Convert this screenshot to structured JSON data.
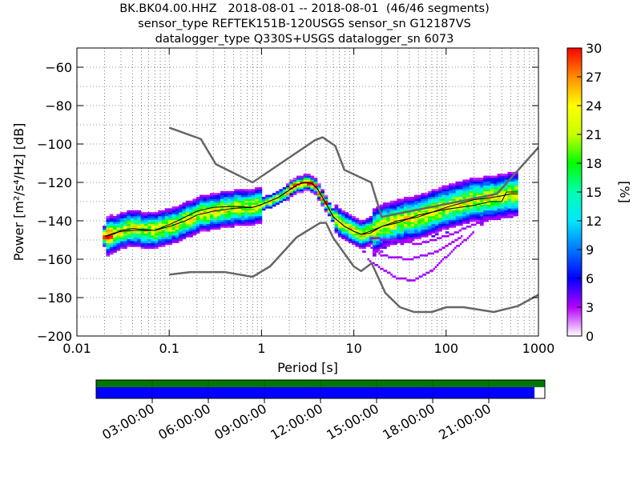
{
  "title": {
    "line1": "BK.BK04.00.HHZ   2018-08-01 -- 2018-08-01  (46/46 segments)",
    "line2": "sensor_type REFTEK151B-120USGS sensor_sn G12187VS",
    "line3": "datalogger_type Q330S+USGS datalogger_sn 6073"
  },
  "chart_data": {
    "type": "heatmap",
    "xlabel": "Period [s]",
    "ylabel": "Power [m²/s⁴/Hz] [dB]",
    "xscale": "log",
    "xlim": [
      0.01,
      1000
    ],
    "ylim": [
      -200,
      -50
    ],
    "x_ticks": [
      "0.01",
      "0.1",
      "1",
      "10",
      "100",
      "1000"
    ],
    "y_ticks": [
      "−200",
      "−180",
      "−160",
      "−140",
      "−120",
      "−100",
      "−80",
      "−60"
    ],
    "colorbar": {
      "label": "[%]",
      "range": [
        0,
        30
      ],
      "ticks": [
        "0",
        "3",
        "6",
        "9",
        "12",
        "15",
        "18",
        "21",
        "24",
        "27",
        "30"
      ]
    },
    "series": [
      {
        "role": "high_noise_model",
        "x": [
          0.1,
          0.22,
          0.32,
          0.8,
          3.8,
          4.6,
          6.3,
          7.9,
          15.4,
          20,
          354.8,
          10000
        ],
        "y": [
          -91.5,
          -97.4,
          -110.5,
          -120,
          -98,
          -96.5,
          -101,
          -113.5,
          -120,
          -138,
          -126,
          -48
        ]
      },
      {
        "role": "low_noise_model",
        "x": [
          0.1,
          0.17,
          0.4,
          0.8,
          1.24,
          2.4,
          4.3,
          5,
          6,
          10,
          12,
          15.6,
          21.9,
          31.6,
          45,
          70,
          101,
          154,
          328,
          600,
          10000
        ],
        "y": [
          -168,
          -166.7,
          -166.7,
          -169.2,
          -163.7,
          -148.6,
          -141.1,
          -141.1,
          -149,
          -163.8,
          -166.2,
          -162.1,
          -177.5,
          -185,
          -187.5,
          -187.5,
          -185,
          -185,
          -187.5,
          -184.4,
          -151.9
        ]
      },
      {
        "role": "mode",
        "x": [
          0.02,
          0.025,
          0.03,
          0.04,
          0.05,
          0.07,
          0.1,
          0.15,
          0.2,
          0.3,
          0.5,
          0.8,
          1,
          1.5,
          2,
          2.5,
          3,
          3.5,
          4,
          5,
          6,
          8,
          10,
          12,
          15,
          20,
          30,
          50,
          100,
          200,
          300,
          400,
          500,
          600
        ],
        "y": [
          -148,
          -147,
          -145,
          -144,
          -144.5,
          -145,
          -143,
          -140,
          -137,
          -135,
          -133.5,
          -133,
          -131.5,
          -128,
          -124,
          -121,
          -120,
          -120.5,
          -123,
          -131,
          -138,
          -143,
          -145.5,
          -147,
          -145.5,
          -143,
          -140,
          -138,
          -133,
          -129,
          -128,
          -127,
          -126,
          -126
        ]
      },
      {
        "role": "mean",
        "x": [
          0.02,
          0.025,
          0.03,
          0.04,
          0.05,
          0.07,
          0.1,
          0.15,
          0.2,
          0.3,
          0.5,
          0.8,
          1,
          1.5,
          2,
          2.5,
          3,
          3.5,
          4,
          5,
          6,
          8,
          10,
          12,
          15,
          20,
          30,
          50,
          100,
          200,
          300,
          400,
          450,
          500,
          600
        ],
        "y": [
          -148,
          -146.5,
          -145.5,
          -145,
          -145,
          -145,
          -142,
          -138,
          -135,
          -133,
          -132.5,
          -133,
          -131.5,
          -128,
          -124,
          -121,
          -120,
          -120.5,
          -123,
          -131,
          -138,
          -143,
          -145.5,
          -147,
          -146.5,
          -143,
          -141,
          -137,
          -134,
          -132,
          -130,
          -130,
          -125,
          -125,
          -125
        ]
      }
    ]
  },
  "time_axis": {
    "labels": [
      "03:00:00",
      "06:00:00",
      "09:00:00",
      "12:00:00",
      "15:00:00",
      "18:00:00",
      "21:00:00"
    ],
    "data_coverage_fraction": 1.0,
    "segment_coverage_fraction": 0.977
  },
  "colors": {
    "background": "#ffffff",
    "noise_model": "#666666",
    "mode_line": "#000000",
    "mean_line": "#000000",
    "coverage_data": "#007700",
    "coverage_segments": "#0000ff"
  }
}
